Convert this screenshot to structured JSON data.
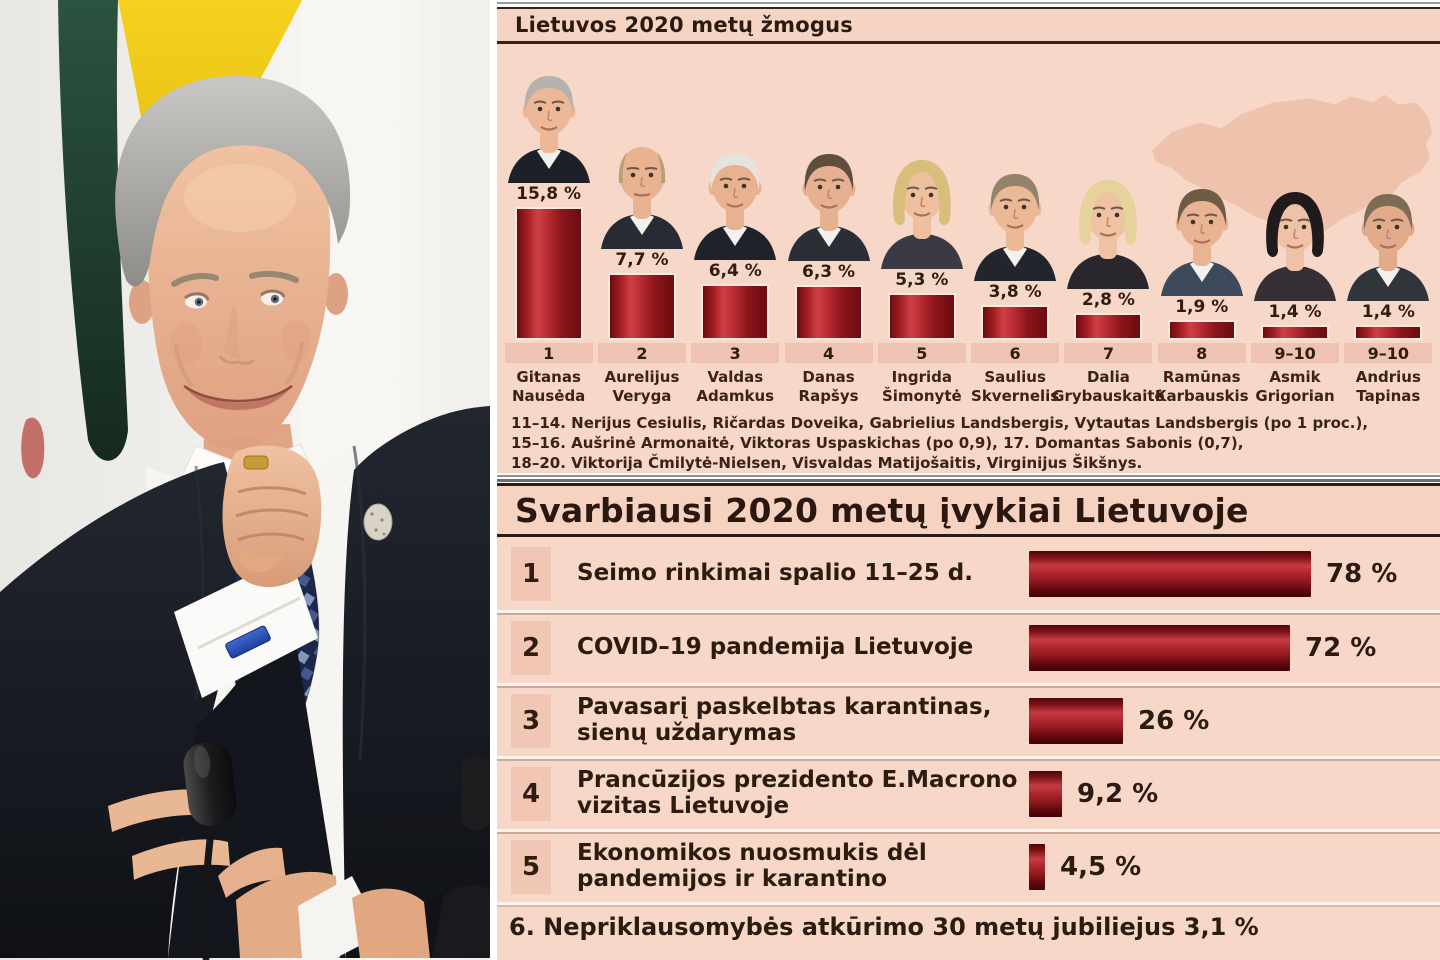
{
  "poll": {
    "title": "Lietuvos 2020 metų žmogus",
    "people": [
      {
        "rank": "1",
        "first": "Gitanas",
        "last": "Nausėda",
        "pct": 15.8,
        "pct_label": "15,8 %",
        "variant": "male",
        "hair": "#b5b2ad",
        "skin": "#ecb897",
        "top": "#1d2026"
      },
      {
        "rank": "2",
        "first": "Aurelijus",
        "last": "Veryga",
        "pct": 7.7,
        "pct_label": "7,7 %",
        "variant": "bald",
        "hair": "#b99f74",
        "skin": "#e9b290",
        "top": "#272b33"
      },
      {
        "rank": "3",
        "first": "Valdas",
        "last": "Adamkus",
        "pct": 6.4,
        "pct_label": "6,4 %",
        "variant": "male",
        "hair": "#e6e3de",
        "skin": "#e8b190",
        "top": "#1f2229"
      },
      {
        "rank": "4",
        "first": "Danas",
        "last": "Rapšys",
        "pct": 6.3,
        "pct_label": "6,3 %",
        "variant": "male",
        "hair": "#5f4e3e",
        "skin": "#e7b191",
        "top": "#2b2e35"
      },
      {
        "rank": "5",
        "first": "Ingrida",
        "last": "Šimonytė",
        "pct": 5.3,
        "pct_label": "5,3 %",
        "variant": "female",
        "hair": "#d9bd7a",
        "skin": "#eec09f",
        "top": "#3a3a42"
      },
      {
        "rank": "6",
        "first": "Saulius",
        "last": "Skvernelis",
        "pct": 3.8,
        "pct_label": "3,8 %",
        "variant": "male",
        "hair": "#93836d",
        "skin": "#ecb997",
        "top": "#22252c"
      },
      {
        "rank": "7",
        "first": "Dalia",
        "last": "Grybauskaitė",
        "pct": 2.8,
        "pct_label": "2,8 %",
        "variant": "female",
        "hair": "#e6d29b",
        "skin": "#efc2a3",
        "top": "#2a262e"
      },
      {
        "rank": "8",
        "first": "Ramūnas",
        "last": "Karbauskis",
        "pct": 1.9,
        "pct_label": "1,9 %",
        "variant": "male",
        "hair": "#6f5c44",
        "skin": "#e9b493",
        "top": "#3c4a5c"
      },
      {
        "rank": "9–10",
        "first": "Asmik",
        "last": "Grigorian",
        "pct": 1.4,
        "pct_label": "1,4 %",
        "variant": "female",
        "hair": "#1f1b1c",
        "skin": "#eec2a6",
        "top": "#343036"
      },
      {
        "rank": "9–10",
        "first": "Andrius",
        "last": "Tapinas",
        "pct": 1.4,
        "pct_label": "1,4 %",
        "variant": "male",
        "hair": "#7c6b55",
        "skin": "#e2ab8a",
        "top": "#30343b"
      }
    ],
    "footnote_lines": [
      "11–14. Nerijus Cesiulis, Ričardas Doveika, Gabrielius Landsbergis, Vytautas Landsbergis (po 1 proc.),",
      "15–16. Aušrinė Armonaitė, Viktoras Uspaskichas (po 0,9), 17. Domantas Sabonis (0,7),",
      "18–20. Viktorija Čmilytė-Nielsen, Visvaldas Matijošaitis, Virginijus Šikšnys."
    ]
  },
  "events": {
    "title": "Svarbiausi 2020 metų įvykiai Lietuvoje",
    "rows": [
      {
        "rank": "1",
        "label": "Seimo rinkimai spalio 11–25 d.",
        "pct": 78,
        "pct_label": "78 %"
      },
      {
        "rank": "2",
        "label": "COVID–19 pandemija Lietuvoje",
        "pct": 72,
        "pct_label": "72 %"
      },
      {
        "rank": "3",
        "label": "Pavasarį paskelbtas karantinas,\nsienų uždarymas",
        "pct": 26,
        "pct_label": "26 %"
      },
      {
        "rank": "4",
        "label": "Prancūzijos prezidento E.Macrono\nvizitas Lietuvoje",
        "pct": 9.2,
        "pct_label": "9,2 %"
      },
      {
        "rank": "5",
        "label": "Ekonomikos nuosmukis dėl\npandemijos ir karantino",
        "pct": 4.5,
        "pct_label": "4,5 %"
      }
    ],
    "footer": "6. Nepriklausomybės atkūrimo 30 metų jubiliejus 3,1 %"
  },
  "chart_data": [
    {
      "type": "bar",
      "orientation": "vertical",
      "title": "Lietuvos 2020 metų žmogus",
      "categories": [
        "Gitanas Nausėda",
        "Aurelijus Veryga",
        "Valdas Adamkus",
        "Danas Rapšys",
        "Ingrida Šimonytė",
        "Saulius Skvernelis",
        "Dalia Grybauskaitė",
        "Ramūnas Karbauskis",
        "Asmik Grigorian",
        "Andrius Tapinas"
      ],
      "values": [
        15.8,
        7.7,
        6.4,
        6.3,
        5.3,
        3.8,
        2.8,
        1.9,
        1.4,
        1.4
      ],
      "rank_labels": [
        "1",
        "2",
        "3",
        "4",
        "5",
        "6",
        "7",
        "8",
        "9–10",
        "9–10"
      ],
      "unit": "%",
      "annotations": [
        "11–14. Nerijus Cesiulis, Ričardas Doveika, Gabrielius Landsbergis, Vytautas Landsbergis (po 1 proc.),",
        "15–16. Aušrinė Armonaitė, Viktoras Uspaskichas (po 0,9), 17. Domantas Sabonis (0,7),",
        "18–20. Viktorija Čmilytė-Nielsen, Visvaldas Matijošaitis, Virginijus Šikšnys."
      ]
    },
    {
      "type": "bar",
      "orientation": "horizontal",
      "title": "Svarbiausi 2020 metų įvykiai Lietuvoje",
      "categories": [
        "Seimo rinkimai spalio 11–25 d.",
        "COVID–19 pandemija Lietuvoje",
        "Pavasarį paskelbtas karantinas, sienų uždarymas",
        "Prancūzijos prezidento E.Macrono vizitas Lietuvoje",
        "Ekonomikos nuosmukis dėl pandemijos ir karantino"
      ],
      "values": [
        78,
        72,
        26,
        9.2,
        4.5
      ],
      "unit": "%",
      "annotations": [
        "6. Nepriklausomybės atkūrimo 30 metų jubiliejus 3,1 %"
      ]
    }
  ],
  "colors": {
    "panel_background": "#f7d8c8",
    "rank_band": "#efc3b1",
    "bar_bright_red": "#c43b42",
    "bar_dark_red": "#5d080d",
    "text_dark_brown": "#2c1b10",
    "map_silhouette": "#eec2ad",
    "flag_yellow": "#f2ca1c",
    "flag_green": "#24493600"
  }
}
